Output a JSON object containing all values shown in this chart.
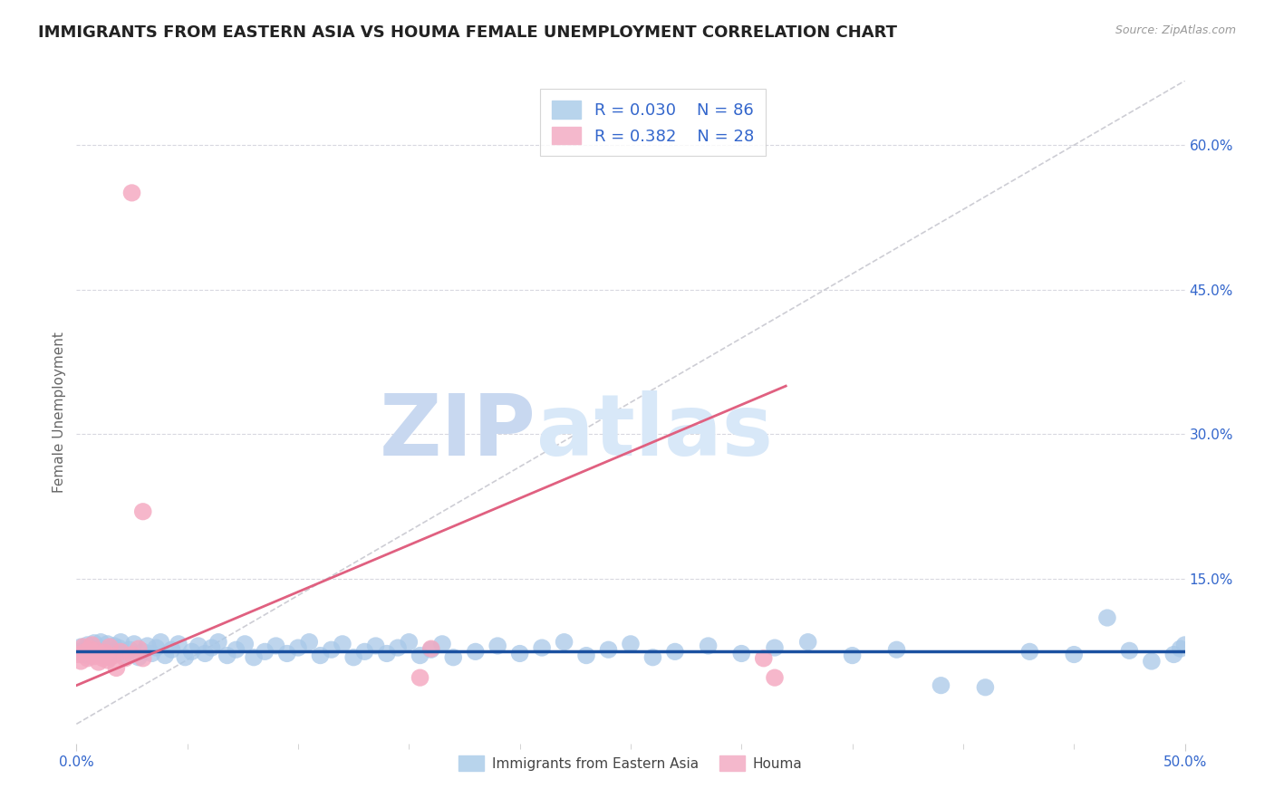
{
  "title": "IMMIGRANTS FROM EASTERN ASIA VS HOUMA FEMALE UNEMPLOYMENT CORRELATION CHART",
  "source_text": "Source: ZipAtlas.com",
  "ylabel": "Female Unemployment",
  "xlim": [
    0.0,
    0.5
  ],
  "ylim": [
    -0.02,
    0.666
  ],
  "ytick_vals": [
    0.15,
    0.3,
    0.45,
    0.6
  ],
  "ytick_labels": [
    "15.0%",
    "30.0%",
    "45.0%",
    "60.0%"
  ],
  "blue_R": 0.03,
  "blue_N": 86,
  "pink_R": 0.382,
  "pink_N": 28,
  "blue_color": "#a8c8e8",
  "pink_color": "#f4a8c0",
  "blue_line_color": "#1a50a0",
  "pink_line_color": "#e06080",
  "trend_line_color": "#c8c8d0",
  "background_color": "#ffffff",
  "grid_color": "#d8d8e0",
  "watermark_zip_color": "#c8d8f0",
  "watermark_atlas_color": "#d8e8f8",
  "blue_x": [
    0.001,
    0.002,
    0.003,
    0.004,
    0.005,
    0.006,
    0.007,
    0.008,
    0.009,
    0.01,
    0.011,
    0.012,
    0.013,
    0.014,
    0.015,
    0.016,
    0.017,
    0.018,
    0.019,
    0.02,
    0.022,
    0.024,
    0.026,
    0.028,
    0.03,
    0.032,
    0.034,
    0.036,
    0.038,
    0.04,
    0.043,
    0.046,
    0.049,
    0.052,
    0.055,
    0.058,
    0.061,
    0.064,
    0.068,
    0.072,
    0.076,
    0.08,
    0.085,
    0.09,
    0.095,
    0.1,
    0.105,
    0.11,
    0.115,
    0.12,
    0.125,
    0.13,
    0.135,
    0.14,
    0.145,
    0.15,
    0.155,
    0.16,
    0.165,
    0.17,
    0.18,
    0.19,
    0.2,
    0.21,
    0.22,
    0.23,
    0.24,
    0.25,
    0.26,
    0.27,
    0.285,
    0.3,
    0.315,
    0.33,
    0.35,
    0.37,
    0.39,
    0.41,
    0.43,
    0.45,
    0.465,
    0.475,
    0.485,
    0.495,
    0.498,
    0.5
  ],
  "blue_y": [
    0.075,
    0.08,
    0.072,
    0.078,
    0.082,
    0.07,
    0.076,
    0.084,
    0.073,
    0.079,
    0.085,
    0.071,
    0.077,
    0.083,
    0.069,
    0.075,
    0.081,
    0.073,
    0.079,
    0.085,
    0.071,
    0.077,
    0.083,
    0.069,
    0.075,
    0.081,
    0.073,
    0.079,
    0.085,
    0.071,
    0.077,
    0.083,
    0.069,
    0.075,
    0.081,
    0.073,
    0.079,
    0.085,
    0.071,
    0.077,
    0.083,
    0.069,
    0.075,
    0.081,
    0.073,
    0.079,
    0.085,
    0.071,
    0.077,
    0.083,
    0.069,
    0.075,
    0.081,
    0.073,
    0.079,
    0.085,
    0.071,
    0.077,
    0.083,
    0.069,
    0.075,
    0.081,
    0.073,
    0.079,
    0.085,
    0.071,
    0.077,
    0.083,
    0.069,
    0.075,
    0.081,
    0.073,
    0.079,
    0.085,
    0.071,
    0.077,
    0.04,
    0.038,
    0.075,
    0.072,
    0.11,
    0.076,
    0.065,
    0.072,
    0.078,
    0.082
  ],
  "pink_x": [
    0.001,
    0.002,
    0.003,
    0.004,
    0.005,
    0.006,
    0.007,
    0.008,
    0.009,
    0.01,
    0.011,
    0.012,
    0.013,
    0.014,
    0.015,
    0.016,
    0.018,
    0.02,
    0.022,
    0.025,
    0.028,
    0.03,
    0.025,
    0.03,
    0.155,
    0.16,
    0.31,
    0.315
  ],
  "pink_y": [
    0.072,
    0.065,
    0.08,
    0.075,
    0.068,
    0.078,
    0.082,
    0.07,
    0.076,
    0.064,
    0.072,
    0.068,
    0.074,
    0.066,
    0.08,
    0.07,
    0.058,
    0.075,
    0.068,
    0.072,
    0.078,
    0.068,
    0.55,
    0.22,
    0.048,
    0.078,
    0.068,
    0.048
  ],
  "pink_line_x0": 0.0,
  "pink_line_y0": 0.04,
  "pink_line_x1": 0.32,
  "pink_line_y1": 0.35,
  "blue_line_y": 0.075
}
